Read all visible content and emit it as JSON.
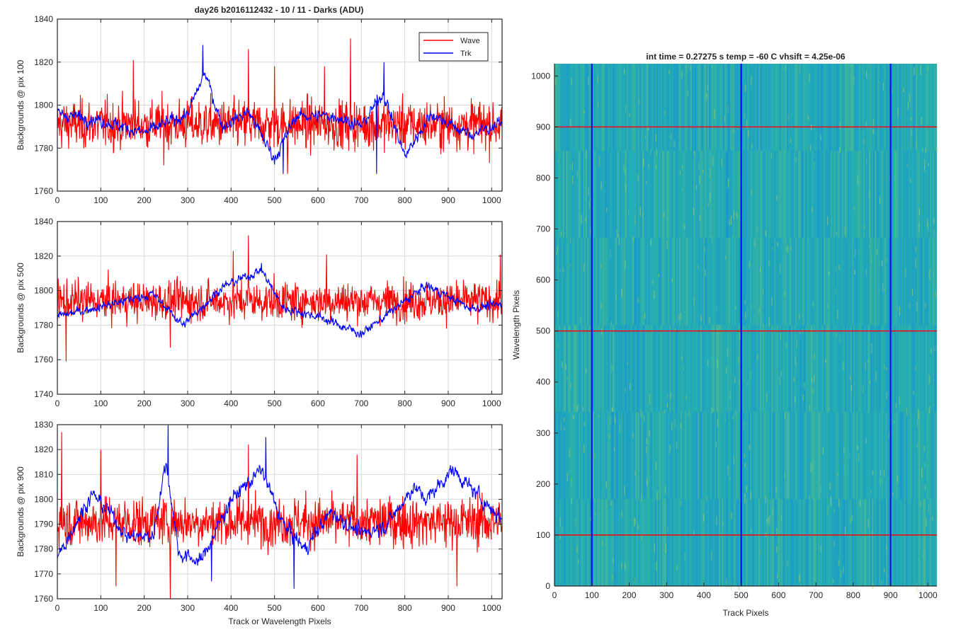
{
  "figure": {
    "title": "day26 b2016112432 - 10 / 11 - Darks (ADU)",
    "colors": {
      "wave": "#ff0000",
      "trk": "#0000ff",
      "grid": "#d9d9d9",
      "axis": "#262626"
    }
  },
  "chart_data": [
    {
      "type": "line",
      "id": "pix100",
      "title": "day26 b2016112432 - 10 / 11 - Darks (ADU)",
      "xlabel": "",
      "ylabel": "Backgrounds @ pix 100",
      "xlim": [
        0,
        1024
      ],
      "ylim": [
        1760,
        1840
      ],
      "xticks": [
        0,
        100,
        200,
        300,
        400,
        500,
        600,
        700,
        800,
        900,
        1000
      ],
      "yticks": [
        1760,
        1780,
        1800,
        1820,
        1840
      ],
      "grid": true,
      "legend": "top-right",
      "series": [
        {
          "name": "Wave",
          "color": "#ff0000",
          "mean": 1791,
          "noise": 8,
          "x": [
            0,
            1024
          ],
          "spikes": [
            [
              175,
              1821
            ],
            [
              440,
              1826
            ],
            [
              500,
              1818
            ],
            [
              615,
              1818
            ],
            [
              675,
              1831
            ],
            [
              530,
              1768
            ],
            [
              245,
              1772
            ]
          ]
        },
        {
          "name": "Trk",
          "color": "#0000ff",
          "mean": 1790,
          "noise": 4,
          "drift": [
            [
              0,
              1796
            ],
            [
              100,
              1793
            ],
            [
              200,
              1787
            ],
            [
              300,
              1796
            ],
            [
              340,
              1815
            ],
            [
              380,
              1790
            ],
            [
              440,
              1797
            ],
            [
              500,
              1775
            ],
            [
              550,
              1795
            ],
            [
              640,
              1795
            ],
            [
              700,
              1790
            ],
            [
              750,
              1806
            ],
            [
              800,
              1776
            ],
            [
              860,
              1796
            ],
            [
              950,
              1786
            ],
            [
              1024,
              1792
            ]
          ],
          "spikes": [
            [
              335,
              1828
            ],
            [
              752,
              1820
            ],
            [
              520,
              1768
            ],
            [
              735,
              1768
            ]
          ]
        }
      ]
    },
    {
      "type": "line",
      "id": "pix500",
      "title": "",
      "xlabel": "",
      "ylabel": "Backgrounds @ pix 500",
      "xlim": [
        0,
        1024
      ],
      "ylim": [
        1740,
        1840
      ],
      "xticks": [
        0,
        100,
        200,
        300,
        400,
        500,
        600,
        700,
        800,
        900,
        1000
      ],
      "yticks": [
        1740,
        1760,
        1780,
        1800,
        1820,
        1840
      ],
      "grid": true,
      "series": [
        {
          "name": "Wave",
          "color": "#ff0000",
          "mean": 1794,
          "noise": 8,
          "spikes": [
            [
              440,
              1832
            ],
            [
              405,
              1823
            ],
            [
              620,
              1821
            ],
            [
              1020,
              1821
            ],
            [
              20,
              1759
            ],
            [
              260,
              1767
            ]
          ]
        },
        {
          "name": "Trk",
          "color": "#0000ff",
          "mean": 1790,
          "noise": 3.5,
          "drift": [
            [
              0,
              1785
            ],
            [
              120,
              1792
            ],
            [
              220,
              1798
            ],
            [
              290,
              1780
            ],
            [
              380,
              1802
            ],
            [
              470,
              1812
            ],
            [
              520,
              1790
            ],
            [
              600,
              1785
            ],
            [
              700,
              1775
            ],
            [
              780,
              1790
            ],
            [
              850,
              1803
            ],
            [
              950,
              1790
            ],
            [
              1024,
              1792
            ]
          ],
          "spikes": [
            [
              470,
              1816
            ]
          ]
        }
      ]
    },
    {
      "type": "line",
      "id": "pix900",
      "title": "",
      "xlabel": "Track or Wavelength Pixels",
      "ylabel": "Backgrounds @ pix 900",
      "xlim": [
        0,
        1024
      ],
      "ylim": [
        1760,
        1830
      ],
      "xticks": [
        0,
        100,
        200,
        300,
        400,
        500,
        600,
        700,
        800,
        900,
        1000
      ],
      "yticks": [
        1760,
        1770,
        1780,
        1790,
        1800,
        1810,
        1820,
        1830
      ],
      "grid": true,
      "series": [
        {
          "name": "Wave",
          "color": "#ff0000",
          "mean": 1791,
          "noise": 7,
          "spikes": [
            [
              10,
              1827
            ],
            [
              100,
              1820
            ],
            [
              260,
              1760
            ],
            [
              440,
              1822
            ],
            [
              690,
              1818
            ],
            [
              135,
              1765
            ],
            [
              920,
              1765
            ]
          ]
        },
        {
          "name": "Trk",
          "color": "#0000ff",
          "mean": 1790,
          "noise": 4,
          "drift": [
            [
              0,
              1776
            ],
            [
              40,
              1790
            ],
            [
              80,
              1802
            ],
            [
              120,
              1795
            ],
            [
              160,
              1785
            ],
            [
              220,
              1785
            ],
            [
              250,
              1815
            ],
            [
              280,
              1778
            ],
            [
              330,
              1775
            ],
            [
              400,
              1800
            ],
            [
              470,
              1812
            ],
            [
              520,
              1790
            ],
            [
              570,
              1780
            ],
            [
              630,
              1795
            ],
            [
              700,
              1786
            ],
            [
              760,
              1790
            ],
            [
              820,
              1805
            ],
            [
              850,
              1800
            ],
            [
              910,
              1812
            ],
            [
              960,
              1803
            ],
            [
              1024,
              1792
            ]
          ],
          "spikes": [
            [
              255,
              1830
            ],
            [
              480,
              1825
            ],
            [
              545,
              1764
            ],
            [
              355,
              1767
            ]
          ]
        }
      ]
    },
    {
      "type": "heatmap",
      "id": "image",
      "title": "int time = 0.27275 s    temp = -60 C    vhsift = 4.25e-06",
      "xlabel": "Track Pixels",
      "ylabel": "Wavelength Pixels",
      "xlim": [
        0,
        1024
      ],
      "ylim": [
        0,
        1024
      ],
      "xticks": [
        0,
        100,
        200,
        300,
        400,
        500,
        600,
        700,
        800,
        900,
        1000
      ],
      "yticks": [
        0,
        100,
        200,
        300,
        400,
        500,
        600,
        700,
        800,
        900,
        1000
      ],
      "colormap": "parula",
      "base_color": "#21a8b8",
      "markers": {
        "vertical": [
          100,
          500,
          900
        ],
        "vertical_color": "#0000ff",
        "horizontal": [
          100,
          500,
          900
        ],
        "horizontal_color": "#ff0000"
      }
    }
  ]
}
